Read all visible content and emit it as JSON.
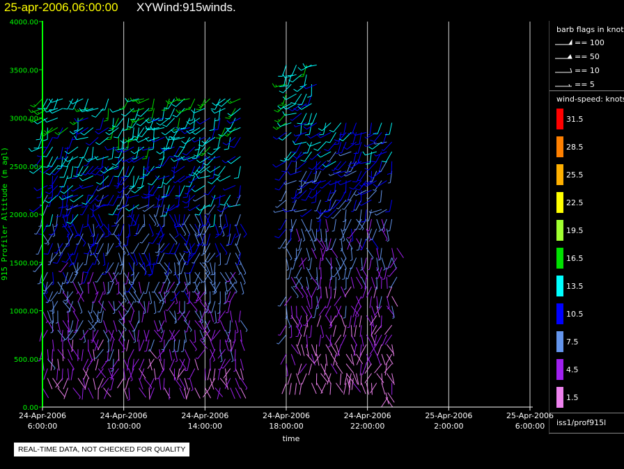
{
  "header": {
    "date_title": "25-apr-2006,06:00:00",
    "product_title": "XYWind:915winds."
  },
  "colors": {
    "title_date": "#ffff00",
    "title_product": "#ffffff",
    "axis": "#00ff00",
    "text": "#ffffff",
    "gridline": "#d8d8d8"
  },
  "chart_data": {
    "type": "scatter",
    "marker": "wind-barb",
    "ylabel": "915 Profiler Altitude (m agl)",
    "xlabel": "time",
    "ylim": [
      0,
      4000
    ],
    "y_ticks": [
      "0.00",
      "500.00",
      "1000.00",
      "1500.00",
      "2000.00",
      "2500.00",
      "3000.00",
      "3500.00",
      "4000.00"
    ],
    "x_range_hours": [
      0,
      24
    ],
    "x_ticks": [
      {
        "hour": 0,
        "date": "24-Apr-2006",
        "time": "6:00:00"
      },
      {
        "hour": 4,
        "date": "24-Apr-2006",
        "time": "10:00:00"
      },
      {
        "hour": 8,
        "date": "24-Apr-2006",
        "time": "14:00:00"
      },
      {
        "hour": 12,
        "date": "24-Apr-2006",
        "time": "18:00:00"
      },
      {
        "hour": 16,
        "date": "24-Apr-2006",
        "time": "22:00:00"
      },
      {
        "hour": 20,
        "date": "25-Apr-2006",
        "time": "2:00:00"
      },
      {
        "hour": 24,
        "date": "25-Apr-2006",
        "time": "6:00:00"
      }
    ],
    "grid": true,
    "wind_speed_bins": [
      {
        "label": "31.5",
        "color": "#ff0000"
      },
      {
        "label": "28.5",
        "color": "#ff8000"
      },
      {
        "label": "25.5",
        "color": "#ffb000"
      },
      {
        "label": "22.5",
        "color": "#ffff00"
      },
      {
        "label": "19.5",
        "color": "#a0ff30"
      },
      {
        "label": "16.5",
        "color": "#00e000"
      },
      {
        "label": "13.5",
        "color": "#00ffff"
      },
      {
        "label": "10.5",
        "color": "#0000ff"
      },
      {
        "label": "7.5",
        "color": "#6495ed"
      },
      {
        "label": "4.5",
        "color": "#a020f0"
      },
      {
        "label": "1.5",
        "color": "#ee82ee"
      }
    ],
    "profile_groups": [
      {
        "start_hour": 0.0,
        "end_hour": 9.8,
        "step_hours": 0.25,
        "z_min": 200,
        "z_max": 3250,
        "z_step": 100
      },
      {
        "start_hour": 12.0,
        "end_hour": 13.7,
        "step_hours": 0.25,
        "z_min": 250,
        "z_max": 3600,
        "z_step": 100
      },
      {
        "start_hour": 13.7,
        "end_hour": 17.2,
        "step_hours": 0.25,
        "z_min": 250,
        "z_max": 3000,
        "z_step": 100
      },
      {
        "start_hour": 17.2,
        "end_hour": 17.6,
        "step_hours": 0.25,
        "z_min": 1350,
        "z_max": 1650,
        "z_step": 100
      },
      {
        "start_hour": 15.0,
        "end_hour": 15.3,
        "step_hours": 0.15,
        "z_min": 250,
        "z_max": 350,
        "z_step": 50
      },
      {
        "start_hour": 16.9,
        "end_hour": 17.0,
        "step_hours": 0.1,
        "z_min": 50,
        "z_max": 150,
        "z_step": 50
      }
    ]
  },
  "legend": {
    "barb_title": "barb flags in knots",
    "barb_items": [
      "== 100",
      "== 50",
      "== 10",
      "== 5"
    ],
    "speed_title": "wind-speed: knots",
    "footer": "iss1/prof915l"
  },
  "banner": {
    "quality": "REAL-TIME DATA, NOT CHECKED FOR QUALITY"
  }
}
